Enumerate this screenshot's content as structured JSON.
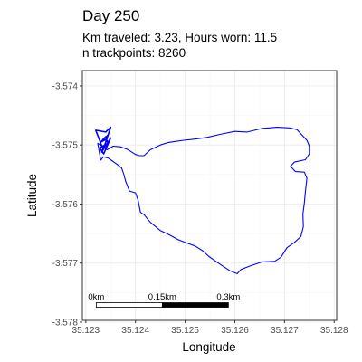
{
  "chart_data": {
    "type": "line",
    "title": "Day 250",
    "subtitle_lines": [
      "Km traveled: 3.23, Hours worn: 11.5",
      "n trackpoints: 8260"
    ],
    "xlabel": "Longitude",
    "ylabel": "Latitude",
    "xlim": [
      35.12293,
      35.12805
    ],
    "ylim": [
      -3.57797,
      -3.57374
    ],
    "x_ticks": [
      35.123,
      35.124,
      35.125,
      35.126,
      35.127,
      35.128
    ],
    "x_tick_labels": [
      "35.123",
      "35.124",
      "35.125",
      "35.126",
      "35.127",
      "35.128"
    ],
    "y_ticks": [
      -3.574,
      -3.575,
      -3.576,
      -3.577,
      -3.578
    ],
    "y_tick_labels": [
      "-3.574",
      "-3.575",
      "-3.576",
      "-3.577",
      "-3.578"
    ],
    "grid": true,
    "line_color": "#0000ff",
    "path": {
      "lon": [
        35.1233,
        35.12324,
        35.12335,
        35.12343,
        35.12355,
        35.1237,
        35.12385,
        35.124,
        35.12408,
        35.12417,
        35.1243,
        35.1245,
        35.12465,
        35.1248,
        35.12497,
        35.1252,
        35.12545,
        35.1257,
        35.126,
        35.12625,
        35.12655,
        35.12685,
        35.1271,
        35.12725,
        35.12745,
        35.1275,
        35.1275,
        35.12742,
        35.1272,
        35.12712,
        35.12722,
        35.1274,
        35.12745,
        35.12742,
        35.1274,
        35.12737,
        35.12738,
        35.12733,
        35.1272,
        35.12705,
        35.12693,
        35.1268,
        35.12655,
        35.1263,
        35.12612,
        35.12605,
        35.1259,
        35.12565,
        35.12548,
        35.12535,
        35.1252,
        35.125,
        35.12485,
        35.1247,
        35.1245,
        35.1243,
        35.12417,
        35.1241,
        35.12405,
        35.124,
        35.12388,
        35.1238,
        35.12377,
        35.12372,
        35.12365,
        35.12355,
        35.12345,
        35.12335,
        35.1233
      ],
      "lat": [
        -3.57526,
        -3.57497,
        -3.57503,
        -3.57508,
        -3.57502,
        -3.57503,
        -3.57508,
        -3.57516,
        -3.57518,
        -3.57518,
        -3.57508,
        -3.575,
        -3.57496,
        -3.57494,
        -3.57492,
        -3.5749,
        -3.57487,
        -3.57482,
        -3.57477,
        -3.57478,
        -3.57472,
        -3.5747,
        -3.57471,
        -3.57474,
        -3.57492,
        -3.57502,
        -3.57515,
        -3.57525,
        -3.57529,
        -3.57536,
        -3.57545,
        -3.57546,
        -3.57556,
        -3.5758,
        -3.57598,
        -3.57617,
        -3.57638,
        -3.57655,
        -3.57665,
        -3.57674,
        -3.5769,
        -3.57697,
        -3.57698,
        -3.57705,
        -3.57711,
        -3.57718,
        -3.57713,
        -3.57699,
        -3.57689,
        -3.57679,
        -3.57671,
        -3.57665,
        -3.5766,
        -3.57653,
        -3.57645,
        -3.57631,
        -3.57618,
        -3.57614,
        -3.57593,
        -3.57581,
        -3.57578,
        -3.57561,
        -3.57551,
        -3.57539,
        -3.57534,
        -3.57528,
        -3.57522,
        -3.5752,
        -3.57526
      ]
    },
    "cluster": {
      "lon": [
        35.12335,
        35.1232,
        35.1234,
        35.1235,
        35.12342,
        35.1233,
        35.12345,
        35.12338,
        35.12332,
        35.1235,
        35.12336,
        35.12328,
        35.12344,
        35.1234,
        35.12333
      ],
      "lat": [
        -3.57508,
        -3.57475,
        -3.57478,
        -3.5747,
        -3.5749,
        -3.57495,
        -3.57483,
        -3.575,
        -3.57512,
        -3.57488,
        -3.57515,
        -3.57505,
        -3.57497,
        -3.57486,
        -3.57492
      ]
    },
    "scale_bar": {
      "labels": [
        "0km",
        "0.15km",
        "0.3km"
      ],
      "lon_start": 35.12321,
      "lon_mid": 35.12454,
      "lon_end": 35.12587,
      "lat": -3.57771
    }
  }
}
